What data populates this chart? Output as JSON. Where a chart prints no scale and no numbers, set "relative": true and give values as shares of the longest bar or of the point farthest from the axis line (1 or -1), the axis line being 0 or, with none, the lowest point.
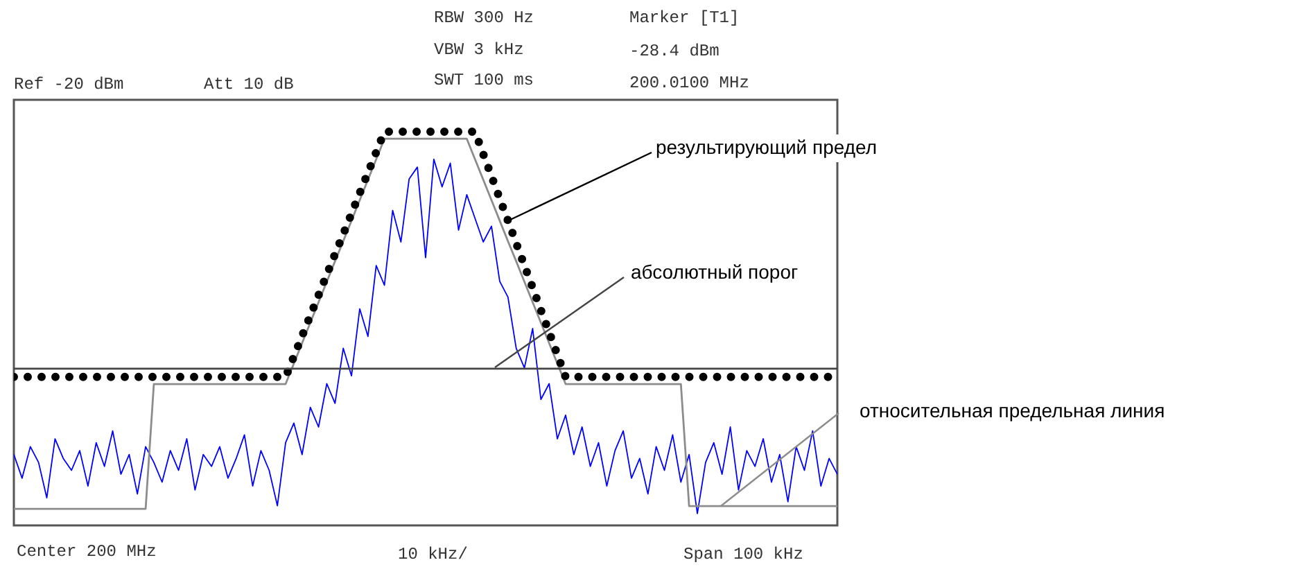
{
  "chart_data": {
    "type": "line",
    "relative": true,
    "legend": false,
    "categories": [
      null,
      null,
      null,
      null,
      null,
      null,
      null,
      null,
      null,
      null,
      null,
      null,
      null,
      null,
      null,
      null,
      null,
      null,
      null,
      null,
      null,
      null,
      null,
      null,
      null,
      null,
      null,
      null,
      null,
      null,
      null,
      null,
      null,
      null,
      null,
      null,
      null,
      null,
      null,
      null,
      null,
      null,
      null,
      null,
      null,
      null,
      null,
      null,
      null,
      null,
      null,
      null,
      null,
      null,
      null,
      null,
      null,
      null,
      null,
      null,
      null,
      null,
      null,
      null,
      null,
      null,
      null,
      null,
      null,
      null,
      null,
      null,
      null,
      null,
      null,
      null,
      null,
      null,
      null,
      null,
      null,
      null,
      null,
      null,
      null,
      null,
      null,
      null,
      null,
      null,
      null,
      null,
      null,
      null,
      null,
      null,
      null,
      null,
      null,
      null,
      null
    ],
    "annotations": [
      "RBW 300  Hz",
      "VBW   3 kHz",
      "SWT 100 ms",
      "Marker [T1]",
      "-28.4 dBm",
      "200.0100 MHz",
      "Ref -20 dBm",
      "Att 10 dB",
      "Center  200 MHz",
      "10 kHz/",
      "Span 100 kHz",
      "результирующий предел"
    ],
    "ref_lines": [
      {
        "axis": "y",
        "value": 0.398,
        "label": "абсолютный порог",
        "color": "#444444"
      }
    ],
    "series": [
      {
        "color": "#0000ff",
        "values": [
          0.18,
          0.12,
          0.2,
          0.16,
          0.07,
          0.22,
          0.17,
          0.14,
          0.19,
          0.1,
          0.21,
          0.15,
          0.24,
          0.13,
          0.18,
          0.08,
          0.2,
          0.16,
          0.11,
          0.19,
          0.14,
          0.22,
          0.09,
          0.18,
          0.15,
          0.2,
          0.12,
          0.17,
          0.23,
          0.1,
          0.19,
          0.14,
          0.05,
          0.21,
          0.26,
          0.18,
          0.3,
          0.25,
          0.36,
          0.31,
          0.45,
          0.38,
          0.55,
          0.48,
          0.66,
          0.61,
          0.8,
          0.72,
          0.88,
          0.91,
          0.68,
          0.93,
          0.86,
          0.92,
          0.75,
          0.84,
          0.78,
          0.72,
          0.76,
          0.62,
          0.58,
          0.45,
          0.4,
          0.5,
          0.32,
          0.36,
          0.22,
          0.28,
          0.18,
          0.25,
          0.15,
          0.21,
          0.1,
          0.19,
          0.24,
          0.12,
          0.17,
          0.08,
          0.2,
          0.14,
          0.23,
          0.11,
          0.18,
          0.03,
          0.16,
          0.21,
          0.13,
          0.25,
          0.09,
          0.19,
          0.15,
          0.22,
          0.11,
          0.18,
          0.06,
          0.2,
          0.14,
          0.24,
          0.1,
          0.17,
          0.13
        ]
      },
      {
        "name": "относительная предельная линия",
        "color": "#8c8c8c",
        "values": [
          0.042,
          0.042,
          0.042,
          0.042,
          0.042,
          0.042,
          0.042,
          0.042,
          0.042,
          0.042,
          0.042,
          0.042,
          0.042,
          0.042,
          0.042,
          0.042,
          0.042,
          0.359,
          0.359,
          0.359,
          0.359,
          0.359,
          0.359,
          0.359,
          0.359,
          0.359,
          0.359,
          0.359,
          0.359,
          0.359,
          0.359,
          0.359,
          0.359,
          0.359,
          0.411,
          0.463,
          0.515,
          0.567,
          0.619,
          0.671,
          0.722,
          0.774,
          0.826,
          0.878,
          0.93,
          0.982,
          0.982,
          0.982,
          0.982,
          0.982,
          0.982,
          0.982,
          0.982,
          0.982,
          0.982,
          0.982,
          0.93,
          0.878,
          0.826,
          0.774,
          0.722,
          0.671,
          0.619,
          0.567,
          0.515,
          0.463,
          0.411,
          0.359,
          0.359,
          0.359,
          0.359,
          0.359,
          0.359,
          0.359,
          0.359,
          0.359,
          0.359,
          0.359,
          0.359,
          0.359,
          0.359,
          0.359,
          0.049,
          0.049,
          0.049,
          0.049,
          0.049,
          0.049,
          0.049,
          0.049,
          0.049,
          0.049,
          0.049,
          0.049,
          0.049,
          0.049,
          0.049,
          0.049,
          0.049,
          0.049,
          0.049
        ]
      },
      {
        "color": "#000000",
        "line_style": "dotted",
        "values": [
          0.377,
          0.377,
          0.377,
          0.377,
          0.377,
          0.377,
          0.377,
          0.377,
          0.377,
          0.377,
          0.377,
          0.377,
          0.377,
          0.377,
          0.377,
          0.377,
          0.377,
          0.377,
          0.377,
          0.377,
          0.377,
          0.377,
          0.377,
          0.377,
          0.377,
          0.377,
          0.377,
          0.377,
          0.377,
          0.377,
          0.377,
          0.377,
          0.377,
          0.377,
          0.429,
          0.481,
          0.533,
          0.585,
          0.637,
          0.689,
          0.74,
          0.792,
          0.844,
          0.896,
          0.948,
          1.0,
          1.0,
          1.0,
          1.0,
          1.0,
          1.0,
          1.0,
          1.0,
          1.0,
          1.0,
          1.0,
          1.0,
          0.943,
          0.887,
          0.83,
          0.774,
          0.717,
          0.66,
          0.604,
          0.547,
          0.491,
          0.434,
          0.377,
          0.377,
          0.377,
          0.377,
          0.377,
          0.377,
          0.377,
          0.377,
          0.377,
          0.377,
          0.377,
          0.377,
          0.377,
          0.377,
          0.377,
          0.377,
          0.377,
          0.377,
          0.377,
          0.377,
          0.377,
          0.377,
          0.377,
          0.377,
          0.377,
          0.377,
          0.377,
          0.377,
          0.377,
          0.377,
          0.377,
          0.377,
          0.377,
          0.377
        ]
      }
    ]
  }
}
